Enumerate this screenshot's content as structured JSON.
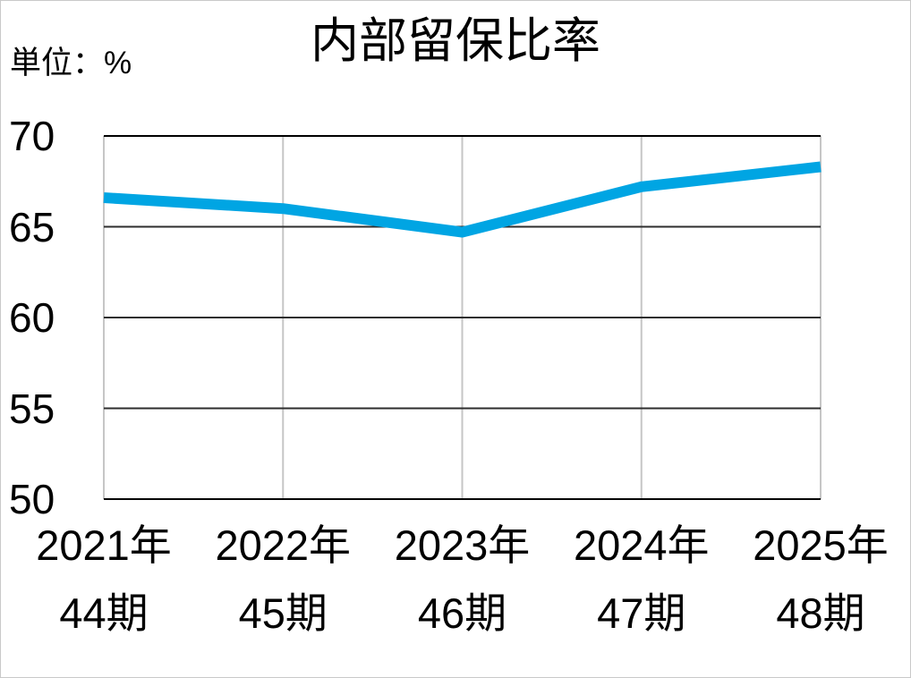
{
  "canvas": {
    "background": "#ffffff",
    "border_color": "#c9c9c9"
  },
  "chart_data": {
    "type": "line",
    "title": "内部留保比率",
    "unit_label": "単位：%",
    "categories": [
      {
        "year": "2021年",
        "period": "44期"
      },
      {
        "year": "2022年",
        "period": "45期"
      },
      {
        "year": "2023年",
        "period": "46期"
      },
      {
        "year": "2024年",
        "period": "47期"
      },
      {
        "year": "2025年",
        "period": "48期"
      }
    ],
    "series": [
      {
        "name": "内部留保比率",
        "values": [
          66.6,
          66.0,
          64.7,
          67.2,
          68.3
        ],
        "color": "#00a5e3",
        "line_width": 12
      }
    ],
    "xlabel": "",
    "ylabel": "",
    "ylim": [
      50,
      70
    ],
    "yticks": [
      50,
      55,
      60,
      65,
      70
    ],
    "grid": {
      "horizontal": true,
      "vertical": true
    },
    "legend_position": "none",
    "markers": false
  },
  "colors": {
    "horizontal_gridline": "#2e2e2e",
    "bottom_axis_line": "#000000",
    "top_gridline": "#000000",
    "vertical_gridline": "#c6c6c6",
    "text": "#000000"
  }
}
